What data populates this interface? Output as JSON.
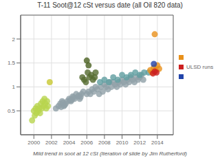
{
  "chart_data": {
    "type": "scatter",
    "title": "T-11 Soot@12 cSt versus date (all Oil 820 data)",
    "subtitle": "Mild trend in soot at 12 cSt (Iteration of slide by Jim Rutherford)",
    "xlim": [
      1998.5,
      2015.8
    ],
    "xticks": [
      2000,
      2002,
      2004,
      2006,
      2008,
      2010,
      2012,
      2014
    ],
    "ylim": [
      0.0,
      2.5
    ],
    "yticks": [
      0.5,
      1.0,
      1.5,
      2.0
    ],
    "grid": true,
    "legend": "right",
    "annotations": [
      {
        "text": "ULSD runs",
        "colors": [
          "#e8901a",
          "#cc2020",
          "#2244aa"
        ]
      }
    ],
    "series": [
      {
        "color": "#b8d44e",
        "x": [
          1999.8,
          2000.0,
          2000.1,
          2000.2,
          2000.3,
          2000.4,
          2000.5,
          2000.6,
          2000.7,
          2000.8,
          2000.9,
          2001.0,
          2001.1,
          2001.2,
          2001.3,
          2001.4,
          2001.5,
          2001.6
        ],
        "values": [
          0.3,
          0.5,
          0.4,
          0.55,
          0.45,
          0.6,
          0.5,
          0.55,
          0.45,
          0.65,
          0.55,
          0.7,
          0.6,
          0.75,
          0.65,
          0.55,
          0.7,
          0.6
        ]
      },
      {
        "color": "#c8c830",
        "x": [
          2001.8
        ],
        "values": [
          1.1
        ]
      },
      {
        "color": "#90a0a8",
        "x": [
          2002.5,
          2002.8,
          2003.0,
          2003.2,
          2003.4,
          2003.6,
          2003.8,
          2004.0,
          2004.2,
          2004.4,
          2004.6,
          2004.8,
          2005.0,
          2005.2,
          2005.4,
          2005.6,
          2003.1,
          2003.5,
          2004.1,
          2004.5,
          2005.1,
          2003.3,
          2004.3,
          2005.3
        ],
        "values": [
          0.55,
          0.6,
          0.65,
          0.7,
          0.6,
          0.65,
          0.7,
          0.75,
          0.7,
          0.8,
          0.75,
          0.85,
          0.8,
          0.75,
          0.85,
          0.9,
          0.58,
          0.62,
          0.72,
          0.78,
          0.82,
          0.67,
          0.73,
          0.79
        ]
      },
      {
        "color": "#90a0a8",
        "x": [
          2006.0,
          2006.2,
          2006.4,
          2006.6,
          2006.8,
          2007.0,
          2007.2,
          2007.4,
          2007.6,
          2007.8,
          2008.0,
          2008.2,
          2008.4,
          2008.6,
          2008.8,
          2009.0,
          2009.2,
          2009.4,
          2009.6,
          2009.8,
          2010.0,
          2010.2,
          2010.4,
          2010.6,
          2010.8,
          2011.0,
          2011.2,
          2011.4,
          2011.6,
          2011.8,
          2012.0,
          2012.2,
          2012.4
        ],
        "values": [
          0.85,
          0.9,
          0.85,
          0.95,
          0.9,
          1.0,
          0.95,
          0.85,
          1.0,
          0.9,
          1.05,
          1.0,
          0.95,
          1.1,
          1.0,
          1.1,
          1.05,
          1.0,
          1.1,
          1.05,
          1.15,
          1.1,
          1.05,
          1.15,
          1.1,
          1.2,
          1.15,
          1.1,
          1.2,
          1.15,
          1.2,
          1.25,
          1.15
        ]
      },
      {
        "color": "#556b2f",
        "x": [
          2005.5,
          2005.7,
          2005.9,
          2006.1,
          2006.3,
          2006.5,
          2006.7,
          2006.9,
          2007.0
        ],
        "values": [
          1.2,
          1.15,
          1.1,
          1.3,
          1.2,
          1.25,
          1.15,
          1.2,
          1.3
        ]
      },
      {
        "color": "#4a6020",
        "x": [
          2006.0,
          2006.2
        ],
        "values": [
          1.55,
          1.45
        ]
      },
      {
        "color": "#5f9ea0",
        "x": [
          2007.5,
          2008.0,
          2008.5,
          2009.0,
          2009.5,
          2010.0,
          2010.5,
          2011.0,
          2011.5,
          2012.0,
          2012.5,
          2013.0
        ],
        "values": [
          1.1,
          1.15,
          1.1,
          1.2,
          1.15,
          1.25,
          1.2,
          1.25,
          1.3,
          1.25,
          1.3,
          1.3
        ]
      },
      {
        "color": "#e8901a",
        "x": [
          2013.2,
          2013.4,
          2013.6,
          2013.8,
          2014.0,
          2014.2
        ],
        "values": [
          1.35,
          1.3,
          1.4,
          1.35,
          1.45,
          1.38
        ]
      },
      {
        "color": "#cc2020",
        "x": [
          2013.5,
          2013.7,
          2013.9
        ],
        "values": [
          1.28,
          1.32,
          1.3
        ]
      },
      {
        "color": "#2244aa",
        "x": [
          2013.6
        ],
        "values": [
          1.48
        ]
      },
      {
        "color": "#e8901a",
        "x": [
          2013.7
        ],
        "values": [
          2.1
        ]
      }
    ]
  }
}
